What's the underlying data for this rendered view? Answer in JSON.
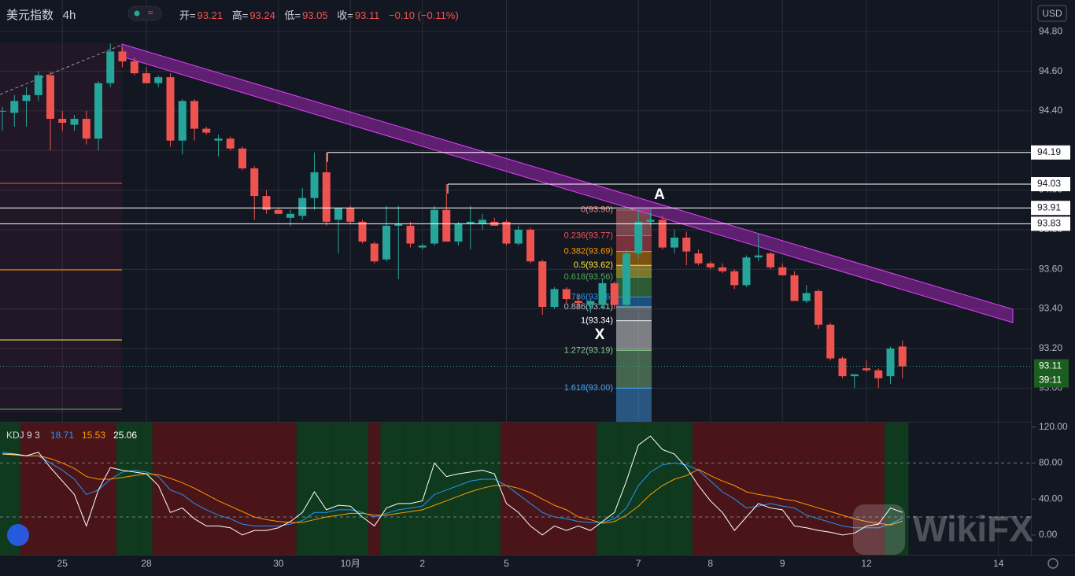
{
  "header": {
    "symbol": "美元指数",
    "interval": "4h",
    "items": [
      "开=",
      "高=",
      "低=",
      "收="
    ],
    "change": "−0.10 (−0.11%)"
  },
  "watermark": "WikiFX",
  "chart_data": [
    {
      "type": "candlestick",
      "categories": [
        null,
        null,
        null,
        null,
        null,
        "25",
        null,
        null,
        null,
        null,
        null,
        null,
        "28",
        null,
        null,
        null,
        null,
        null,
        null,
        null,
        null,
        null,
        null,
        "30",
        null,
        null,
        null,
        null,
        null,
        "10月",
        null,
        null,
        null,
        null,
        null,
        "2",
        null,
        null,
        null,
        null,
        null,
        null,
        "5",
        null,
        null,
        null,
        null,
        null,
        null,
        null,
        null,
        null,
        null,
        "7",
        null,
        null,
        null,
        null,
        null,
        "8",
        null,
        null,
        null,
        null,
        null,
        "9",
        null,
        null,
        null,
        null,
        null,
        null,
        "12",
        null,
        null,
        null,
        null,
        null,
        null,
        null,
        null,
        null,
        null,
        "14"
      ],
      "open": [
        94.4,
        94.39,
        94.45,
        94.48,
        94.58,
        94.36,
        94.33,
        94.36,
        94.26,
        94.54,
        94.7,
        94.65,
        94.59,
        94.54,
        94.57,
        94.25,
        94.45,
        94.31,
        94.25,
        94.26,
        94.21,
        94.11,
        93.97,
        93.9,
        93.86,
        93.87,
        93.96,
        94.09,
        93.85,
        93.91,
        93.84,
        93.73,
        93.65,
        93.82,
        93.82,
        93.71,
        93.73,
        93.9,
        93.74,
        93.83,
        93.83,
        93.84,
        93.84,
        93.73,
        93.8,
        93.64,
        93.41,
        93.5,
        93.44,
        93.42,
        93.42,
        93.53,
        93.42,
        93.68,
        93.84,
        93.85,
        93.71,
        93.76,
        93.68,
        93.63,
        93.61,
        93.59,
        93.52,
        93.66,
        93.68,
        93.61,
        93.57,
        93.44,
        93.49,
        93.32,
        93.15,
        93.06,
        93.1,
        93.09,
        93.06,
        93.21,
        null,
        null,
        null,
        null,
        null,
        null,
        null,
        null
      ],
      "high": [
        94.42,
        94.48,
        94.52,
        94.6,
        94.6,
        94.4,
        94.38,
        94.4,
        94.55,
        94.74,
        94.72,
        94.67,
        94.62,
        94.58,
        94.59,
        94.46,
        94.46,
        94.32,
        94.28,
        94.27,
        94.22,
        94.12,
        94.0,
        93.91,
        93.9,
        94.01,
        94.19,
        94.19,
        93.91,
        93.92,
        93.85,
        93.74,
        93.92,
        93.92,
        93.84,
        93.73,
        93.92,
        94.03,
        93.84,
        93.92,
        93.88,
        93.86,
        93.85,
        93.82,
        93.81,
        93.65,
        93.51,
        93.51,
        93.47,
        93.45,
        93.55,
        93.54,
        93.7,
        93.9,
        93.89,
        93.87,
        93.8,
        93.79,
        93.7,
        93.64,
        93.63,
        93.6,
        93.67,
        93.78,
        93.69,
        93.63,
        93.59,
        93.52,
        93.5,
        93.33,
        93.16,
        93.07,
        93.14,
        93.1,
        93.21,
        93.24,
        null,
        null,
        null,
        null,
        null,
        null,
        null,
        null
      ],
      "low": [
        94.3,
        94.32,
        94.32,
        94.45,
        94.2,
        94.3,
        94.3,
        94.23,
        94.2,
        94.52,
        94.62,
        94.58,
        94.54,
        94.52,
        94.22,
        94.18,
        94.25,
        94.28,
        94.17,
        94.2,
        94.1,
        93.85,
        93.88,
        93.88,
        93.82,
        93.85,
        93.9,
        93.82,
        93.68,
        93.83,
        93.73,
        93.63,
        93.64,
        93.55,
        93.71,
        93.7,
        93.72,
        93.74,
        93.72,
        93.7,
        93.8,
        93.82,
        93.72,
        93.72,
        93.63,
        93.37,
        93.4,
        93.43,
        93.4,
        93.38,
        93.4,
        93.4,
        93.41,
        93.66,
        93.82,
        93.7,
        93.68,
        93.62,
        93.62,
        93.6,
        93.58,
        93.5,
        93.51,
        93.64,
        93.6,
        93.57,
        93.44,
        93.43,
        93.3,
        93.14,
        93.05,
        93.0,
        93.08,
        93.0,
        93.02,
        93.05,
        null,
        null,
        null,
        null,
        null,
        null,
        null,
        null
      ],
      "close": [
        94.4,
        94.45,
        94.48,
        94.58,
        94.36,
        94.34,
        94.36,
        94.26,
        94.54,
        94.7,
        94.65,
        94.59,
        94.54,
        94.57,
        94.25,
        94.45,
        94.31,
        94.29,
        94.26,
        94.21,
        94.11,
        93.97,
        93.9,
        93.88,
        93.88,
        93.96,
        94.09,
        93.84,
        93.91,
        93.84,
        93.74,
        93.64,
        93.82,
        93.83,
        93.73,
        93.72,
        93.9,
        93.74,
        93.83,
        93.84,
        93.85,
        93.82,
        93.73,
        93.8,
        93.64,
        93.41,
        93.5,
        93.45,
        93.43,
        93.44,
        93.53,
        93.42,
        93.68,
        93.84,
        93.85,
        93.71,
        93.76,
        93.69,
        93.63,
        93.61,
        93.59,
        93.52,
        93.66,
        93.67,
        93.61,
        93.57,
        93.44,
        93.48,
        93.32,
        93.15,
        93.06,
        93.07,
        93.09,
        93.05,
        93.2,
        93.11,
        null,
        null,
        null,
        null,
        null,
        null,
        null,
        null
      ],
      "up_color": "#26a69a",
      "down_color": "#ef5350",
      "ylim": [
        92.83,
        94.96
      ],
      "yticks": [
        {
          "value": 93.0,
          "label": "93.00"
        },
        {
          "value": 93.2,
          "label": "93.20"
        },
        {
          "value": 93.4,
          "label": "93.40"
        },
        {
          "value": 93.6,
          "label": "93.60"
        },
        {
          "value": 93.8,
          "label": "93.80"
        },
        {
          "value": 94.0,
          "label": "94.00"
        },
        {
          "value": 94.2,
          "label": "94.20"
        },
        {
          "value": 94.4,
          "label": "94.40"
        },
        {
          "value": 94.6,
          "label": "94.60"
        },
        {
          "value": 94.8,
          "label": "94.80"
        }
      ],
      "grid": true,
      "currency": "USD",
      "price_lines": [
        94.19,
        94.03,
        93.91,
        93.83
      ],
      "countdown": "39:11",
      "fib_levels": [
        {
          "value": 93.9,
          "label": "0(93.90)",
          "color": "#f77c80"
        },
        {
          "value": 93.77,
          "label": "0.236(93.77)",
          "color": "#f7525f"
        },
        {
          "value": 93.69,
          "label": "0.382(93.69)",
          "color": "#ff9800"
        },
        {
          "value": 93.62,
          "label": "0.5(93.62)",
          "color": "#ffeb3b"
        },
        {
          "value": 93.56,
          "label": "0.618(93.56)",
          "color": "#4caf50"
        },
        {
          "value": 93.46,
          "label": "0.786(93.46)",
          "color": "#2196f3"
        },
        {
          "value": 93.41,
          "label": "0.886(93.41)",
          "color": "#b0bec5"
        },
        {
          "value": 93.34,
          "label": "1(93.34)",
          "color": "#ffffff"
        },
        {
          "value": 93.19,
          "label": "1.272(93.19)",
          "color": "#81c784"
        },
        {
          "value": 93.0,
          "label": "1.618(93.00)",
          "color": "#42a5f5"
        }
      ],
      "annotations": [
        "A",
        "X"
      ]
    },
    {
      "type": "line",
      "title": "KDJ 9 3",
      "series": [
        {
          "color": "#2196f3",
          "values": [
            92,
            90,
            88,
            88,
            80,
            72,
            62,
            45,
            50,
            62,
            70,
            72,
            70,
            65,
            50,
            45,
            35,
            28,
            22,
            18,
            12,
            10,
            10,
            10,
            12,
            16,
            25,
            25,
            28,
            28,
            25,
            20,
            24,
            28,
            30,
            32,
            45,
            50,
            55,
            60,
            62,
            62,
            55,
            45,
            35,
            25,
            20,
            18,
            15,
            14,
            14,
            18,
            30,
            55,
            70,
            78,
            80,
            78,
            72,
            60,
            48,
            40,
            30,
            32,
            35,
            32,
            30,
            22,
            18,
            14,
            10,
            8,
            8,
            8,
            12,
            18.71,
            null,
            null,
            null,
            null,
            null,
            null,
            null,
            null
          ]
        },
        {
          "color": "#ff9800",
          "values": [
            90,
            89,
            88,
            88,
            85,
            80,
            74,
            65,
            62,
            62,
            64,
            66,
            68,
            67,
            63,
            58,
            52,
            45,
            38,
            32,
            26,
            20,
            17,
            15,
            14,
            14,
            17,
            20,
            22,
            24,
            24,
            22,
            22,
            24,
            26,
            28,
            33,
            38,
            43,
            48,
            52,
            55,
            55,
            52,
            47,
            40,
            33,
            28,
            20,
            17,
            13,
            15,
            22,
            32,
            45,
            55,
            62,
            66,
            73,
            66,
            60,
            55,
            48,
            45,
            43,
            40,
            38,
            34,
            30,
            26,
            22,
            18,
            15,
            13,
            11,
            15.53,
            null,
            null,
            null,
            null,
            null,
            null,
            null,
            null
          ]
        },
        {
          "color": "#ffffff",
          "values": [
            90,
            90,
            88,
            92,
            75,
            60,
            45,
            10,
            50,
            75,
            72,
            70,
            68,
            55,
            25,
            30,
            18,
            10,
            10,
            8,
            0,
            5,
            5,
            8,
            15,
            25,
            48,
            28,
            33,
            32,
            20,
            10,
            30,
            35,
            35,
            38,
            80,
            65,
            68,
            70,
            72,
            68,
            35,
            25,
            10,
            0,
            10,
            5,
            10,
            5,
            15,
            25,
            60,
            100,
            110,
            95,
            90,
            75,
            55,
            38,
            25,
            5,
            20,
            35,
            30,
            28,
            10,
            8,
            5,
            3,
            0,
            2,
            10,
            12,
            30,
            25.06,
            null,
            null,
            null,
            null,
            null,
            null,
            null,
            null
          ]
        }
      ],
      "ylim": [
        -22,
        125
      ],
      "yticks": [
        {
          "value": 0,
          "label": "0.00"
        },
        {
          "value": 40,
          "label": "40.00"
        },
        {
          "value": 80,
          "label": "80.00"
        },
        {
          "value": 120,
          "label": "120.00"
        }
      ],
      "ref_lines": [
        80,
        20
      ],
      "up_fill": "#0f3a1e",
      "down_fill": "#4a1419"
    }
  ]
}
